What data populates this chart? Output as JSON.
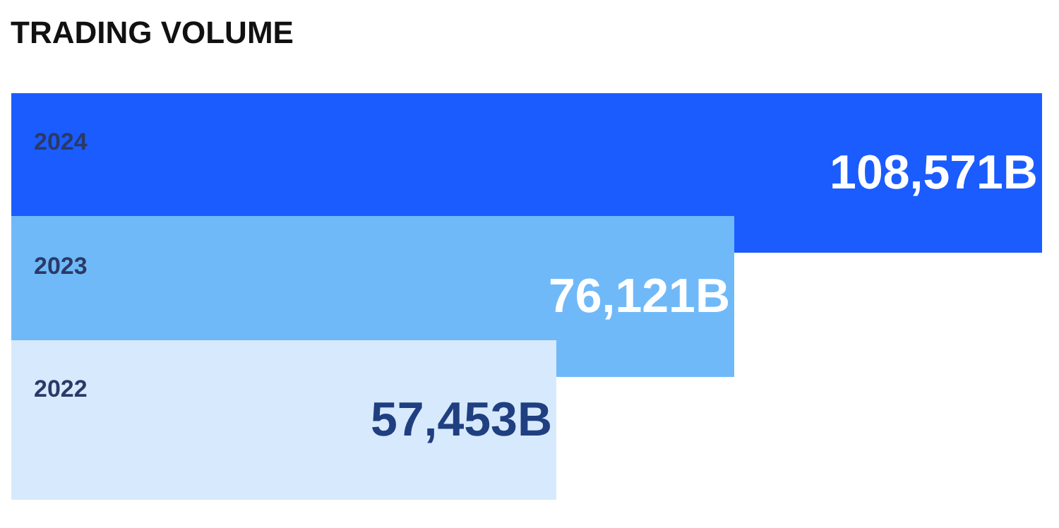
{
  "chart_data": {
    "type": "bar",
    "orientation": "horizontal",
    "title": "TRADING VOLUME",
    "categories": [
      "2024",
      "2023",
      "2022"
    ],
    "values": [
      108571,
      76121,
      57453
    ],
    "value_labels": [
      "108,571B",
      "76,121B",
      "57,453B"
    ],
    "colors": [
      "#1b5cff",
      "#70b9f9",
      "#d7e9fc"
    ],
    "tick_labels": false
  }
}
